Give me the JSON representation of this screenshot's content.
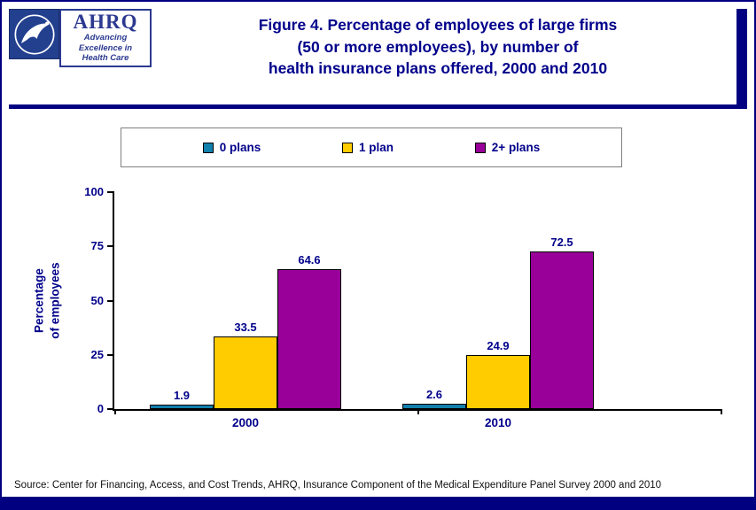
{
  "colors": {
    "accent_navy": "#000080",
    "title_navy": "#00008B",
    "logo_blue": "#2B3990",
    "series_0_plans": "#1080AD",
    "series_1_plan": "#FFCC00",
    "series_2plus_plans": "#990099"
  },
  "header": {
    "title": {
      "line1": "Figure 4. Percentage of employees of large firms",
      "line2": "(50 or more employees), by number of",
      "line3": "health insurance plans offered, 2000 and 2010"
    },
    "logos": {
      "hhs_icon": "hhs-eagle-seal",
      "ahrq_acronym": "AHRQ",
      "ahrq_tagline_line1": "Advancing",
      "ahrq_tagline_line2": "Excellence in",
      "ahrq_tagline_line3": "Health Care"
    }
  },
  "chart_data": {
    "type": "bar",
    "title": "Figure 4. Percentage of employees of large firms (50 or more employees), by number of health insurance plans offered, 2000 and 2010",
    "categories": [
      "2000",
      "2010"
    ],
    "series": [
      {
        "name": "0 plans",
        "color": "#1080AD",
        "values": [
          1.9,
          2.6
        ]
      },
      {
        "name": "1 plan",
        "color": "#FFCC00",
        "values": [
          33.5,
          24.9
        ]
      },
      {
        "name": "2+ plans",
        "color": "#990099",
        "values": [
          64.6,
          72.5
        ]
      }
    ],
    "xlabel": "",
    "ylabel": "Percentage of employees",
    "ylabel_lines": [
      "Percentage",
      "of employees"
    ],
    "ylim": [
      0,
      100
    ],
    "yticks": [
      0,
      25,
      50,
      75,
      100
    ],
    "grid": false,
    "legend_position": "top"
  },
  "footer": {
    "source": "Source: Center for Financing, Access, and Cost Trends, AHRQ, Insurance Component of the Medical Expenditure Panel Survey 2000 and 2010"
  }
}
